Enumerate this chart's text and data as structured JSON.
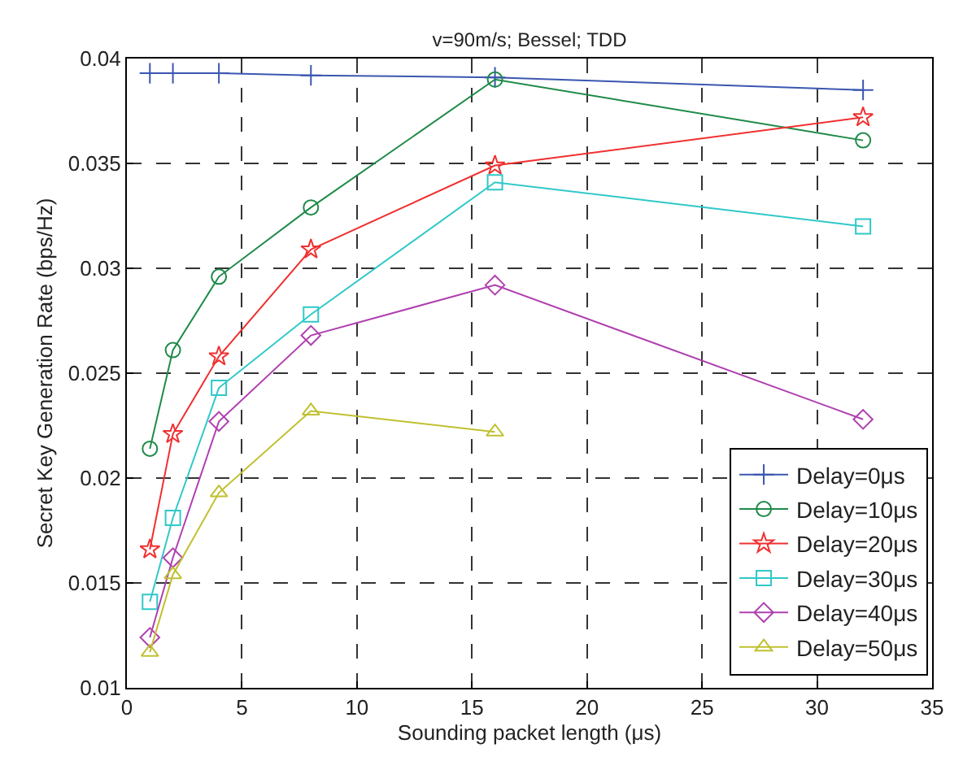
{
  "chart_data": {
    "type": "line",
    "title": "v=90m/s; Bessel; TDD",
    "xlabel": "Sounding packet length (μs)",
    "ylabel": "Secret Key Generation Rate (bps/Hz)",
    "x": [
      1,
      2,
      4,
      8,
      16,
      32
    ],
    "series": [
      {
        "name": "Delay=0μs",
        "color": "#3a56b0",
        "marker": "cross",
        "values": [
          0.0393,
          0.0393,
          0.0393,
          0.0392,
          0.0391,
          0.0385
        ]
      },
      {
        "name": "Delay=10μs",
        "color": "#1e8a48",
        "marker": "circle",
        "values": [
          0.0214,
          0.0261,
          0.0296,
          0.0329,
          0.039,
          0.0361
        ]
      },
      {
        "name": "Delay=20μs",
        "color": "#f03030",
        "marker": "star",
        "values": [
          0.0166,
          0.0221,
          0.0258,
          0.0309,
          0.0349,
          0.0372
        ]
      },
      {
        "name": "Delay=30μs",
        "color": "#30c8c8",
        "marker": "square",
        "values": [
          0.0141,
          0.0181,
          0.0243,
          0.0278,
          0.0341,
          0.032
        ]
      },
      {
        "name": "Delay=40μs",
        "color": "#b040b0",
        "marker": "diamond",
        "values": [
          0.0124,
          0.0162,
          0.0227,
          0.0268,
          0.0292,
          0.0228
        ]
      },
      {
        "name": "Delay=50μs",
        "color": "#c0c030",
        "marker": "triangle",
        "values": [
          0.0117,
          0.0154,
          0.0193,
          0.0232,
          0.0222,
          null
        ]
      }
    ],
    "xlim": [
      0,
      35
    ],
    "xticks": [
      0,
      5,
      10,
      15,
      20,
      25,
      30,
      35
    ],
    "ylim": [
      0.01,
      0.04
    ],
    "yticks": [
      0.01,
      0.015,
      0.02,
      0.025,
      0.03,
      0.035,
      0.04
    ],
    "grid": true,
    "legend": "bottom right",
    "line_style": "solid"
  }
}
